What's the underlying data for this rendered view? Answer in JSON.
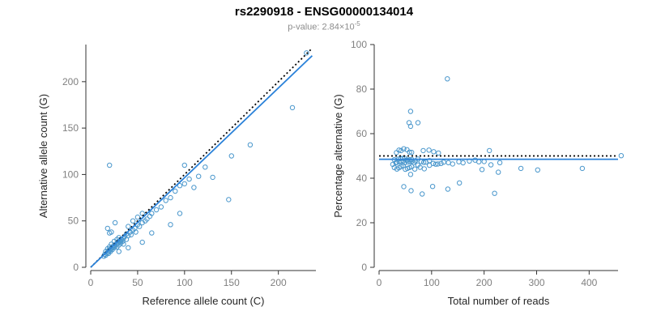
{
  "header": {
    "title": "rs2290918 - ENSG00000134014",
    "subtitle_prefix": "p-value: 2.84×10",
    "subtitle_exponent": "-5"
  },
  "colors": {
    "point": "#4a97cc",
    "fit_line": "#2b82d9",
    "identity_line": "#000000",
    "axis": "#333333",
    "tick_label": "#808080",
    "axis_label": "#262626",
    "subtitle": "#8c8c8c"
  },
  "chart_data": [
    {
      "type": "scatter",
      "name": "allele-counts",
      "xlabel": "Reference allele count (C)",
      "ylabel": "Alternative allele count (G)",
      "xlim": [
        0,
        240
      ],
      "ylim": [
        0,
        240
      ],
      "xticks": [
        0,
        50,
        100,
        150,
        200
      ],
      "yticks": [
        0,
        50,
        100,
        150,
        200
      ],
      "grid": false,
      "legend": "none",
      "points": [
        [
          14,
          12
        ],
        [
          15,
          14
        ],
        [
          16,
          13
        ],
        [
          16,
          17
        ],
        [
          17,
          15
        ],
        [
          18,
          16
        ],
        [
          18,
          20
        ],
        [
          19,
          15
        ],
        [
          19,
          18
        ],
        [
          20,
          18
        ],
        [
          20,
          22
        ],
        [
          21,
          17
        ],
        [
          21,
          20
        ],
        [
          22,
          20
        ],
        [
          22,
          25
        ],
        [
          23,
          19
        ],
        [
          23,
          22
        ],
        [
          24,
          22
        ],
        [
          25,
          21
        ],
        [
          25,
          24
        ],
        [
          25,
          28
        ],
        [
          26,
          23
        ],
        [
          27,
          25
        ],
        [
          28,
          22
        ],
        [
          28,
          26
        ],
        [
          28,
          30
        ],
        [
          29,
          26
        ],
        [
          30,
          24
        ],
        [
          30,
          28
        ],
        [
          30,
          32
        ],
        [
          31,
          28
        ],
        [
          32,
          26
        ],
        [
          32,
          30
        ],
        [
          33,
          30
        ],
        [
          34,
          28
        ],
        [
          35,
          31
        ],
        [
          35,
          25
        ],
        [
          36,
          33
        ],
        [
          38,
          30
        ],
        [
          38,
          36
        ],
        [
          40,
          34
        ],
        [
          40,
          44
        ],
        [
          42,
          38
        ],
        [
          43,
          35
        ],
        [
          45,
          40
        ],
        [
          45,
          50
        ],
        [
          47,
          42
        ],
        [
          48,
          38
        ],
        [
          50,
          46
        ],
        [
          50,
          54
        ],
        [
          52,
          44
        ],
        [
          55,
          48
        ],
        [
          55,
          58
        ],
        [
          58,
          50
        ],
        [
          60,
          52
        ],
        [
          63,
          55
        ],
        [
          65,
          58
        ],
        [
          70,
          62
        ],
        [
          75,
          65
        ],
        [
          18,
          42
        ],
        [
          20,
          37
        ],
        [
          22,
          38
        ],
        [
          26,
          48
        ],
        [
          20,
          110
        ],
        [
          30,
          17
        ],
        [
          40,
          21
        ],
        [
          55,
          27
        ],
        [
          65,
          37
        ],
        [
          85,
          46
        ],
        [
          147,
          73
        ],
        [
          95,
          58
        ],
        [
          80,
          72
        ],
        [
          85,
          75
        ],
        [
          90,
          82
        ],
        [
          95,
          88
        ],
        [
          100,
          90
        ],
        [
          100,
          110
        ],
        [
          105,
          95
        ],
        [
          110,
          86
        ],
        [
          115,
          98
        ],
        [
          122,
          108
        ],
        [
          130,
          97
        ],
        [
          150,
          120
        ],
        [
          170,
          132
        ],
        [
          215,
          172
        ],
        [
          230,
          231
        ]
      ],
      "lines": [
        {
          "label": "identity",
          "dash": true,
          "color": "#000000",
          "x": [
            0,
            236
          ],
          "y": [
            0,
            236
          ]
        },
        {
          "label": "fit",
          "dash": false,
          "color": "#2b82d9",
          "x": [
            0,
            236
          ],
          "y": [
            0,
            228
          ]
        }
      ]
    },
    {
      "type": "scatter",
      "name": "percentage-vs-reads",
      "xlabel": "Total number of reads",
      "ylabel": "Percentage alternative (G)",
      "xlim": [
        0,
        455
      ],
      "ylim": [
        0,
        100
      ],
      "xticks": [
        0,
        100,
        200,
        300,
        400
      ],
      "yticks": [
        0,
        20,
        40,
        60,
        80,
        100
      ],
      "grid": false,
      "legend": "none",
      "points": [
        [
          26,
          46.2
        ],
        [
          29,
          48.3
        ],
        [
          29,
          44.8
        ],
        [
          33,
          51.5
        ],
        [
          32,
          46.9
        ],
        [
          34,
          47.1
        ],
        [
          38,
          52.6
        ],
        [
          34,
          44.1
        ],
        [
          37,
          48.6
        ],
        [
          38,
          47.4
        ],
        [
          42,
          52.4
        ],
        [
          38,
          44.7
        ],
        [
          41,
          48.8
        ],
        [
          42,
          47.6
        ],
        [
          47,
          53.2
        ],
        [
          42,
          45.2
        ],
        [
          45,
          48.9
        ],
        [
          46,
          47.8
        ],
        [
          46,
          45.7
        ],
        [
          49,
          49.0
        ],
        [
          53,
          52.8
        ],
        [
          49,
          46.9
        ],
        [
          52,
          48.1
        ],
        [
          50,
          44.0
        ],
        [
          54,
          48.1
        ],
        [
          58,
          51.7
        ],
        [
          55,
          47.3
        ],
        [
          54,
          44.4
        ],
        [
          58,
          48.3
        ],
        [
          62,
          51.6
        ],
        [
          59,
          47.5
        ],
        [
          58,
          44.8
        ],
        [
          62,
          48.4
        ],
        [
          63,
          47.6
        ],
        [
          62,
          45.2
        ],
        [
          66,
          47.0
        ],
        [
          60,
          41.7
        ],
        [
          69,
          47.8
        ],
        [
          68,
          44.1
        ],
        [
          74,
          48.6
        ],
        [
          74,
          45.9
        ],
        [
          84,
          52.4
        ],
        [
          80,
          47.5
        ],
        [
          78,
          44.9
        ],
        [
          85,
          47.1
        ],
        [
          95,
          52.6
        ],
        [
          89,
          47.2
        ],
        [
          86,
          44.2
        ],
        [
          96,
          47.9
        ],
        [
          104,
          51.9
        ],
        [
          96,
          45.8
        ],
        [
          103,
          46.6
        ],
        [
          113,
          51.3
        ],
        [
          108,
          46.3
        ],
        [
          112,
          46.4
        ],
        [
          118,
          46.6
        ],
        [
          123,
          47.2
        ],
        [
          132,
          47.0
        ],
        [
          140,
          46.4
        ],
        [
          60,
          70.0
        ],
        [
          57,
          64.9
        ],
        [
          60,
          63.3
        ],
        [
          74,
          64.9
        ],
        [
          130,
          84.6
        ],
        [
          47,
          36.2
        ],
        [
          61,
          34.4
        ],
        [
          82,
          32.9
        ],
        [
          102,
          36.3
        ],
        [
          131,
          35.1
        ],
        [
          220,
          33.2
        ],
        [
          153,
          37.9
        ],
        [
          152,
          47.4
        ],
        [
          160,
          46.9
        ],
        [
          172,
          47.7
        ],
        [
          183,
          48.1
        ],
        [
          190,
          47.4
        ],
        [
          210,
          52.4
        ],
        [
          200,
          47.5
        ],
        [
          196,
          43.9
        ],
        [
          213,
          46.0
        ],
        [
          230,
          47.0
        ],
        [
          227,
          42.7
        ],
        [
          270,
          44.4
        ],
        [
          302,
          43.7
        ],
        [
          387,
          44.4
        ],
        [
          461,
          50.1
        ]
      ],
      "lines": [
        {
          "label": "expected-50pct",
          "dash": true,
          "color": "#000000",
          "x": [
            0,
            455
          ],
          "y": [
            50,
            50
          ]
        },
        {
          "label": "fit",
          "dash": false,
          "color": "#2b82d9",
          "x": [
            0,
            455
          ],
          "y": [
            48.5,
            48.5
          ]
        }
      ]
    }
  ]
}
